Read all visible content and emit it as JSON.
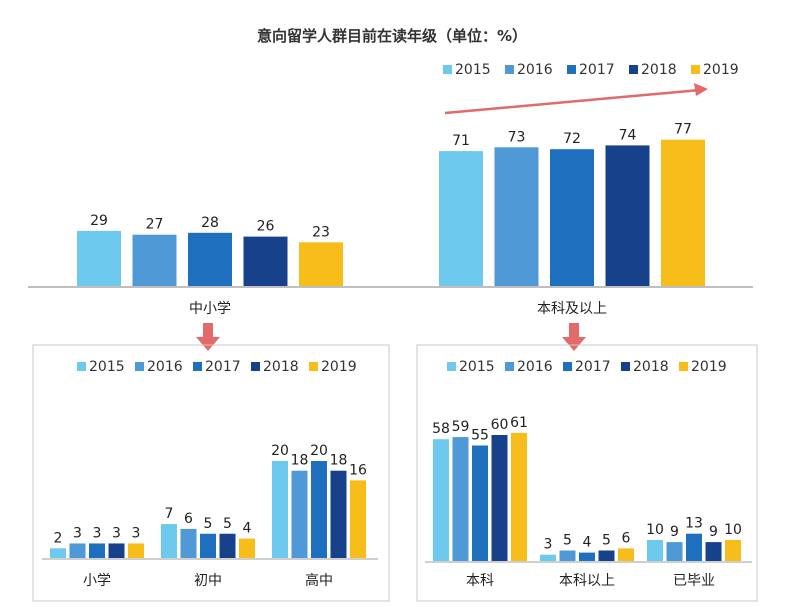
{
  "colors": {
    "2015": "#6ec9ef",
    "2016": "#4f9ad6",
    "2017": "#1f6fbf",
    "2018": "#17418a",
    "2019": "#f7bd1b",
    "arrow": "#e26a6a",
    "axis": "#bfbfbf"
  },
  "chart_data": [
    {
      "type": "bar",
      "title": "意向留学人群目前在读年级（单位：%）",
      "legend": [
        "2015",
        "2016",
        "2017",
        "2018",
        "2019"
      ],
      "categories": [
        "中小学",
        "本科及以上"
      ],
      "series": [
        {
          "name": "2015",
          "values": [
            29,
            71
          ]
        },
        {
          "name": "2016",
          "values": [
            27,
            73
          ]
        },
        {
          "name": "2017",
          "values": [
            28,
            72
          ]
        },
        {
          "name": "2018",
          "values": [
            26,
            74
          ]
        },
        {
          "name": "2019",
          "values": [
            23,
            77
          ]
        }
      ],
      "ylim": [
        0,
        80
      ]
    },
    {
      "type": "bar",
      "title": "",
      "legend": [
        "2015",
        "2016",
        "2017",
        "2018",
        "2019"
      ],
      "categories": [
        "小学",
        "初中",
        "高中"
      ],
      "series": [
        {
          "name": "2015",
          "values": [
            2,
            7,
            20
          ]
        },
        {
          "name": "2016",
          "values": [
            3,
            6,
            18
          ]
        },
        {
          "name": "2017",
          "values": [
            3,
            5,
            20
          ]
        },
        {
          "name": "2018",
          "values": [
            3,
            5,
            18
          ]
        },
        {
          "name": "2019",
          "values": [
            3,
            4,
            16
          ]
        }
      ],
      "ylim": [
        0,
        22
      ]
    },
    {
      "type": "bar",
      "title": "",
      "legend": [
        "2015",
        "2016",
        "2017",
        "2018",
        "2019"
      ],
      "categories": [
        "本科",
        "本科以上",
        "已毕业"
      ],
      "series": [
        {
          "name": "2015",
          "values": [
            58,
            3,
            10
          ]
        },
        {
          "name": "2016",
          "values": [
            59,
            5,
            9
          ]
        },
        {
          "name": "2017",
          "values": [
            55,
            4,
            13
          ]
        },
        {
          "name": "2018",
          "values": [
            60,
            5,
            9
          ]
        },
        {
          "name": "2019",
          "values": [
            61,
            6,
            10
          ]
        }
      ],
      "ylim": [
        0,
        62
      ]
    }
  ]
}
